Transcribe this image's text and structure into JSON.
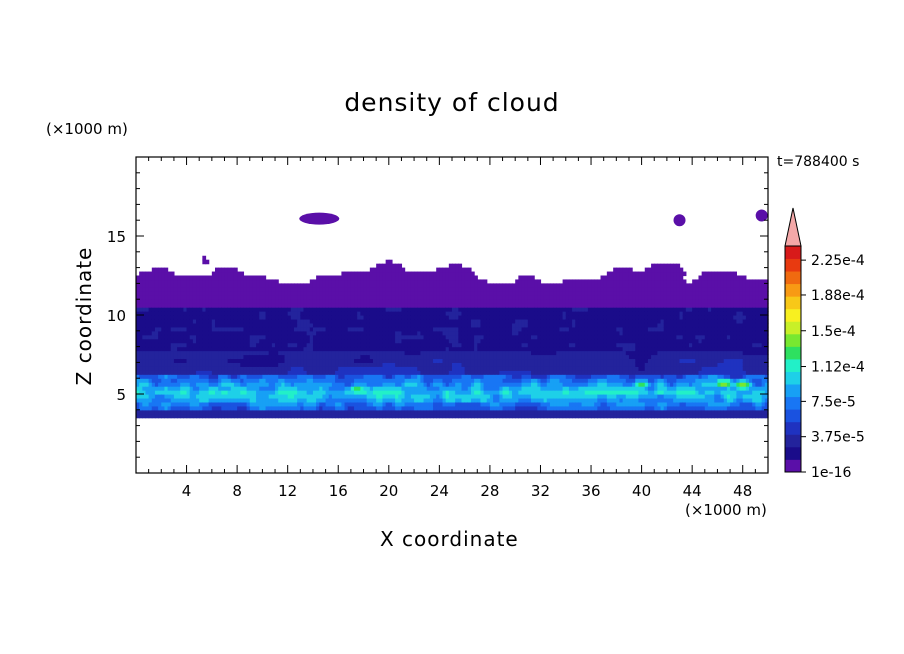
{
  "title": "density of cloud",
  "timestamp": "t=788400 s",
  "colors": {
    "levels": [
      "#5a0fa8",
      "#1a0c8a",
      "#23239c",
      "#1f32c0",
      "#1a52e0",
      "#1876f4",
      "#17a0f5",
      "#1ed0e8",
      "#22f0c8",
      "#2ee060",
      "#78e830",
      "#c8f028",
      "#f8f020",
      "#f8c818",
      "#f89a14",
      "#f06a10",
      "#e83a10",
      "#d81a1a"
    ],
    "overflow": "#f4a8a8"
  },
  "chart_data": {
    "type": "heatmap",
    "title": "density of cloud",
    "xlabel": "X coordinate",
    "ylabel": "Z coordinate",
    "x_unit": "(×1000 m)",
    "y_unit": "(×1000 m)",
    "xlim": [
      0,
      50
    ],
    "ylim": [
      0,
      20
    ],
    "xticks": [
      4,
      8,
      12,
      16,
      20,
      24,
      28,
      32,
      36,
      40,
      44,
      48
    ],
    "yticks": [
      5,
      10,
      15
    ],
    "colorbar": {
      "min": 1e-16,
      "max": 0.00024,
      "labels": [
        "2.25e-4",
        "1.88e-4",
        "1.5e-4",
        "1.12e-4",
        "7.5e-5",
        "3.75e-5",
        "1e-16"
      ],
      "label_values": [
        0.000225,
        0.000188,
        0.00015,
        0.000112,
        7.5e-05,
        3.75e-05,
        1e-16
      ],
      "extend": "max"
    },
    "field_description": "cloud layer between z≈3.5 and z≈15 km; peak density near z≈5 km",
    "layers": [
      {
        "z_bottom": 3.5,
        "z_top": 4.0,
        "level": 2
      },
      {
        "z_bottom": 4.0,
        "z_top": 4.5,
        "level": 4
      },
      {
        "z_bottom": 4.5,
        "z_top": 6.0,
        "level": 6
      },
      {
        "z_bottom": 6.0,
        "z_top": 7.5,
        "level": 3
      },
      {
        "z_bottom": 7.5,
        "z_top": 10.0,
        "level": 2
      },
      {
        "z_bottom": 10.0,
        "z_top": 13.0,
        "level": 0
      }
    ],
    "hotspots": [
      {
        "x": 17.5,
        "z": 5.3,
        "level": 9
      },
      {
        "x": 34.0,
        "z": 5.2,
        "level": 8
      },
      {
        "x": 40.0,
        "z": 5.6,
        "level": 9
      },
      {
        "x": 46.5,
        "z": 5.7,
        "level": 10
      },
      {
        "x": 48.0,
        "z": 5.6,
        "level": 10
      },
      {
        "x": 7.0,
        "z": 5.1,
        "level": 8
      }
    ]
  }
}
